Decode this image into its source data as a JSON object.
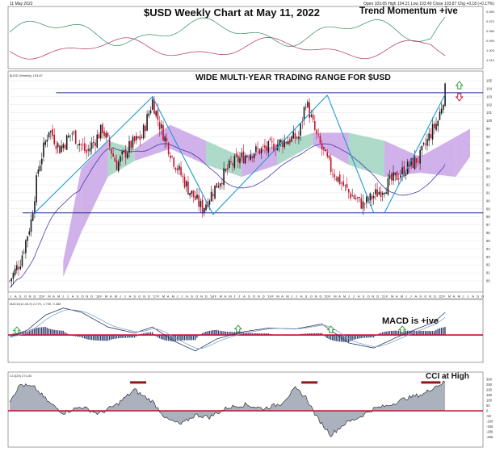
{
  "header": {
    "date": "11 May 2022",
    "quote": "Open 103.65  High 104.21  Low 103.40  Close 103.87  Chg +0.18 (+0.17%)"
  },
  "annotations": {
    "title": "$USD Weekly Chart at May 11, 2022",
    "momentum": "Trend Momentum +ive",
    "range": "WIDE MULTI-YEAR TRADING RANGE FOR $USD",
    "macd": "MACD is +ive",
    "cci": "CCI  at High"
  },
  "panel_labels": {
    "price": "$USD (Weekly) 103.87",
    "macd": "MACD(12,26,9) 2.275, 1.790, 0.485",
    "cci": "CCI(20) 274.30"
  },
  "colors": {
    "up_candle": "#1a1a1a",
    "down_candle": "#c8102e",
    "range_lines": "#1f2d8a",
    "trendlines": "#1e9ad6",
    "cloud_bull": "#9fd4c0",
    "cloud_bear": "#c9a3e6",
    "moving_average": "#4a3aa8",
    "cci_fill": "#8f98a8",
    "zero_line": "#c8102e",
    "macd_histogram": "#2f3f68",
    "momentum_green": "#2e8b57",
    "momentum_red": "#b0305a",
    "arrow_up": "#2e9d3a",
    "arrow_down": "#c8102e"
  },
  "chart_data": {
    "type": "candlestick",
    "frequency": "weekly",
    "x_ticks": [
      "J",
      "A",
      "S",
      "O",
      "N",
      "D",
      "'15",
      "F",
      "M",
      "A",
      "M",
      "J",
      "J",
      "A",
      "S",
      "O",
      "N",
      "D",
      "'16",
      "F",
      "M",
      "A",
      "M",
      "J",
      "J",
      "A",
      "S",
      "O",
      "N",
      "D",
      "'17",
      "F",
      "M",
      "A",
      "M",
      "J",
      "J",
      "A",
      "S",
      "O",
      "N",
      "D",
      "'18",
      "F",
      "M",
      "A",
      "M",
      "J",
      "J",
      "A",
      "S",
      "O",
      "N",
      "D",
      "'19",
      "F",
      "M",
      "A",
      "M",
      "J",
      "J",
      "A",
      "S",
      "O",
      "N",
      "D",
      "'20",
      "F",
      "M",
      "A",
      "M",
      "J",
      "J",
      "A",
      "S",
      "O",
      "N",
      "D",
      "'21",
      "F",
      "M",
      "A",
      "M",
      "J",
      "J",
      "A",
      "S",
      "O",
      "N",
      "D",
      "'22",
      "F",
      "M",
      "A",
      "M",
      "J",
      "J",
      "A",
      "S",
      "O"
    ],
    "price_axis": {
      "ylim": [
        79,
        105
      ],
      "ticks": [
        80,
        81,
        82,
        83,
        84,
        85,
        86,
        87,
        88,
        89,
        90,
        91,
        92,
        93,
        94,
        95,
        96,
        97,
        98,
        99,
        100,
        101,
        102,
        103,
        104,
        105
      ]
    },
    "support_level": 88.5,
    "resistance_level": 103.5,
    "price_path": [
      {
        "week": 0,
        "close": 80.0
      },
      {
        "week": 6,
        "close": 82.5
      },
      {
        "week": 12,
        "close": 87.5
      },
      {
        "week": 16,
        "close": 94.0
      },
      {
        "week": 22,
        "close": 99.0
      },
      {
        "week": 28,
        "close": 96.5
      },
      {
        "week": 35,
        "close": 98.5
      },
      {
        "week": 43,
        "close": 96.0
      },
      {
        "week": 52,
        "close": 99.0
      },
      {
        "week": 60,
        "close": 94.5
      },
      {
        "week": 68,
        "close": 97.0
      },
      {
        "week": 74,
        "close": 98.0
      },
      {
        "week": 80,
        "close": 102.5
      },
      {
        "week": 84,
        "close": 99.5
      },
      {
        "week": 92,
        "close": 95.0
      },
      {
        "week": 100,
        "close": 91.5
      },
      {
        "week": 108,
        "close": 89.0
      },
      {
        "week": 116,
        "close": 92.0
      },
      {
        "week": 124,
        "close": 94.5
      },
      {
        "week": 134,
        "close": 96.0
      },
      {
        "week": 144,
        "close": 96.5
      },
      {
        "week": 154,
        "close": 97.5
      },
      {
        "week": 162,
        "close": 98.0
      },
      {
        "week": 166,
        "close": 102.5
      },
      {
        "week": 172,
        "close": 98.0
      },
      {
        "week": 180,
        "close": 94.0
      },
      {
        "week": 190,
        "close": 91.0
      },
      {
        "week": 198,
        "close": 89.5
      },
      {
        "week": 206,
        "close": 91.0
      },
      {
        "week": 214,
        "close": 92.5
      },
      {
        "week": 222,
        "close": 94.0
      },
      {
        "week": 230,
        "close": 95.5
      },
      {
        "week": 236,
        "close": 98.5
      },
      {
        "week": 240,
        "close": 100.0
      },
      {
        "week": 244,
        "close": 103.8
      }
    ],
    "ichimoku_cloud": [
      {
        "week": 30,
        "top": 82.5,
        "bottom": 80.5,
        "tone": "bear"
      },
      {
        "week": 40,
        "top": 94.0,
        "bottom": 86.0,
        "tone": "bear"
      },
      {
        "week": 55,
        "top": 97.5,
        "bottom": 93.0,
        "tone": "bear"
      },
      {
        "week": 70,
        "top": 96.5,
        "bottom": 95.0,
        "tone": "bull"
      },
      {
        "week": 90,
        "top": 99.5,
        "bottom": 96.5,
        "tone": "bear"
      },
      {
        "week": 110,
        "top": 97.5,
        "bottom": 94.5,
        "tone": "bear"
      },
      {
        "week": 130,
        "top": 95.5,
        "bottom": 93.0,
        "tone": "bull"
      },
      {
        "week": 150,
        "top": 97.0,
        "bottom": 94.5,
        "tone": "bear"
      },
      {
        "week": 170,
        "top": 98.5,
        "bottom": 97.0,
        "tone": "bull"
      },
      {
        "week": 190,
        "top": 98.5,
        "bottom": 94.5,
        "tone": "bear"
      },
      {
        "week": 210,
        "top": 97.5,
        "bottom": 93.0,
        "tone": "bull"
      },
      {
        "week": 230,
        "top": 95.5,
        "bottom": 93.5,
        "tone": "bear"
      },
      {
        "week": 250,
        "top": 98.0,
        "bottom": 93.0,
        "tone": "bear"
      },
      {
        "week": 258,
        "top": 99.0,
        "bottom": 95.5,
        "tone": "bear"
      }
    ],
    "trendlines": [
      {
        "from": {
          "week": 14,
          "value": 88.5
        },
        "to": {
          "week": 80,
          "value": 103.0
        }
      },
      {
        "from": {
          "week": 80,
          "value": 103.0
        },
        "to": {
          "week": 114,
          "value": 88.3
        }
      },
      {
        "from": {
          "week": 114,
          "value": 88.3
        },
        "to": {
          "week": 178,
          "value": 103.2
        }
      },
      {
        "from": {
          "week": 178,
          "value": 103.2
        },
        "to": {
          "week": 204,
          "value": 88.5
        }
      },
      {
        "from": {
          "week": 210,
          "value": 88.5
        },
        "to": {
          "week": 244,
          "value": 103.3
        }
      }
    ],
    "macd": {
      "ylim": [
        -2.5,
        3.0
      ],
      "line": [
        {
          "week": 0,
          "value": -0.2
        },
        {
          "week": 10,
          "value": 0.5
        },
        {
          "week": 20,
          "value": 2.0
        },
        {
          "week": 30,
          "value": 2.7
        },
        {
          "week": 40,
          "value": 2.3
        },
        {
          "week": 55,
          "value": 0.8
        },
        {
          "week": 70,
          "value": 0.2
        },
        {
          "week": 80,
          "value": 0.8
        },
        {
          "week": 92,
          "value": -0.6
        },
        {
          "week": 104,
          "value": -1.6
        },
        {
          "week": 116,
          "value": -0.4
        },
        {
          "week": 130,
          "value": 0.3
        },
        {
          "week": 145,
          "value": 0.7
        },
        {
          "week": 160,
          "value": 0.6
        },
        {
          "week": 175,
          "value": 1.1
        },
        {
          "week": 190,
          "value": -0.8
        },
        {
          "week": 204,
          "value": -1.3
        },
        {
          "week": 216,
          "value": -0.3
        },
        {
          "week": 228,
          "value": 0.6
        },
        {
          "week": 238,
          "value": 1.3
        },
        {
          "week": 244,
          "value": 2.275
        }
      ]
    },
    "cci": {
      "ylim": [
        -330,
        330
      ],
      "ticks": [
        300,
        250,
        200,
        150,
        100,
        50,
        0,
        -50,
        -100,
        -150,
        -200,
        -250
      ],
      "values": [
        {
          "week": 0,
          "value": 100
        },
        {
          "week": 6,
          "value": 250
        },
        {
          "week": 14,
          "value": 220
        },
        {
          "week": 22,
          "value": 80
        },
        {
          "week": 30,
          "value": -20
        },
        {
          "week": 40,
          "value": 40
        },
        {
          "week": 50,
          "value": -30
        },
        {
          "week": 60,
          "value": 60
        },
        {
          "week": 70,
          "value": 200
        },
        {
          "week": 74,
          "value": 150
        },
        {
          "week": 80,
          "value": 90
        },
        {
          "week": 88,
          "value": -80
        },
        {
          "week": 96,
          "value": -130
        },
        {
          "week": 104,
          "value": -40
        },
        {
          "week": 112,
          "value": -60
        },
        {
          "week": 122,
          "value": 30
        },
        {
          "week": 132,
          "value": 60
        },
        {
          "week": 142,
          "value": 20
        },
        {
          "week": 152,
          "value": 70
        },
        {
          "week": 160,
          "value": 210
        },
        {
          "week": 166,
          "value": 130
        },
        {
          "week": 172,
          "value": -60
        },
        {
          "week": 180,
          "value": -230
        },
        {
          "week": 188,
          "value": -120
        },
        {
          "week": 196,
          "value": -60
        },
        {
          "week": 204,
          "value": 20
        },
        {
          "week": 212,
          "value": 50
        },
        {
          "week": 222,
          "value": 120
        },
        {
          "week": 232,
          "value": 160
        },
        {
          "week": 238,
          "value": 230
        },
        {
          "week": 244,
          "value": 274
        }
      ]
    }
  }
}
